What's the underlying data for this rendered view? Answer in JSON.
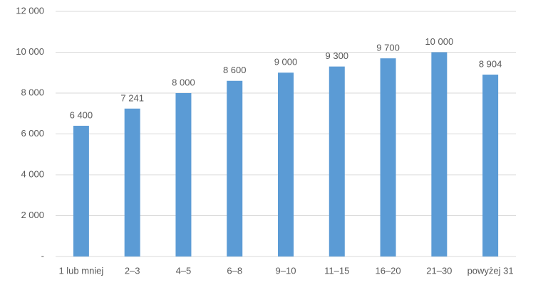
{
  "chart_data": {
    "type": "bar",
    "categories": [
      "1 lub mniej",
      "2–3",
      "4–5",
      "6–8",
      "9–10",
      "11–15",
      "16–20",
      "21–30",
      "powyżej 31"
    ],
    "values": [
      6400,
      7241,
      8000,
      8600,
      9000,
      9300,
      9700,
      10000,
      8904
    ],
    "value_labels": [
      "6 400",
      "7 241",
      "8 000",
      "8 600",
      "9 000",
      "9 300",
      "9 700",
      "10 000",
      "8 904"
    ],
    "color": "#5b9bd5",
    "ylim": [
      0,
      12000
    ],
    "yticks": [
      {
        "value": 0,
        "label": "-"
      },
      {
        "value": 2000,
        "label": "2 000"
      },
      {
        "value": 4000,
        "label": "4 000"
      },
      {
        "value": 6000,
        "label": "6 000"
      },
      {
        "value": 8000,
        "label": "8 000"
      },
      {
        "value": 10000,
        "label": "10 000"
      },
      {
        "value": 12000,
        "label": "12 000"
      }
    ],
    "grid": true
  }
}
